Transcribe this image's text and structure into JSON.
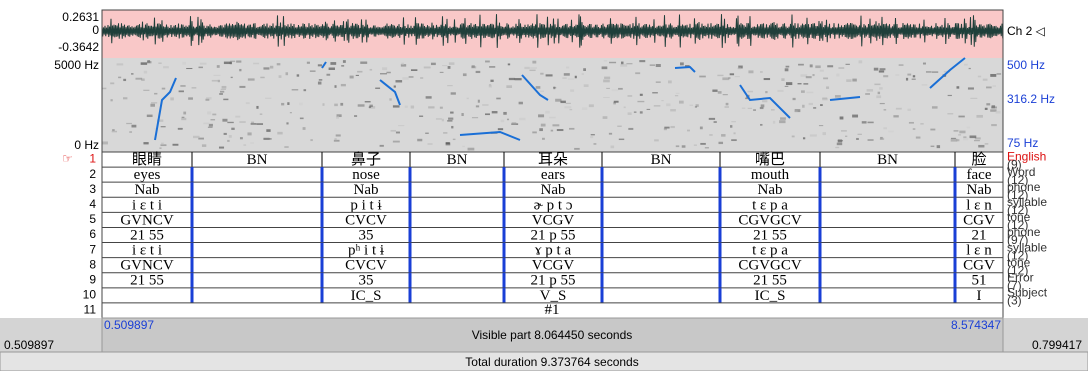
{
  "waveform": {
    "max": "0.2631",
    "zero": "0",
    "min": "-0.3642",
    "channel": "Ch 2 ◁"
  },
  "spectrogram": {
    "top": "5000 Hz",
    "bottom": "0 Hz",
    "pitch_top": "500 Hz",
    "pitch_mid": "316.2 Hz",
    "pitch_bottom": "75 Hz"
  },
  "tiers": [
    {
      "number": "1",
      "name": "English",
      "count": "(9)",
      "labels": [
        "眼睛",
        "BN",
        "鼻子",
        "BN",
        "耳朵",
        "BN",
        "嘴巴",
        "BN",
        "脸"
      ]
    },
    {
      "number": "2",
      "name": "Word",
      "count": "(12)",
      "labels": [
        "eyes",
        null,
        "nose",
        null,
        "ears",
        null,
        "mouth",
        null,
        "face"
      ]
    },
    {
      "number": "3",
      "name": "phone",
      "count": "(12)",
      "labels": [
        "Nab",
        null,
        "Nab",
        null,
        "Nab",
        null,
        "Nab",
        null,
        "Nab"
      ]
    },
    {
      "number": "4",
      "name": "syllable",
      "count": "(12)",
      "labels": [
        "i ɛ t i",
        null,
        "p i t ɨ",
        null,
        "ɚ p t ɔ",
        null,
        "t ɛ p a",
        null,
        "l ɛ n"
      ]
    },
    {
      "number": "5",
      "name": "tone",
      "count": "(12)",
      "labels": [
        "GVNCV",
        null,
        "CVCV",
        null,
        "VCGV",
        null,
        "CGVGCV",
        null,
        "CGV"
      ]
    },
    {
      "number": "6",
      "name": "phone",
      "count": "(97)",
      "labels": [
        "21 55",
        null,
        "35",
        null,
        "21 p 55",
        null,
        "21 55",
        null,
        "21"
      ]
    },
    {
      "number": "7",
      "name": "syllable",
      "count": "(12)",
      "labels": [
        "i ɛ t i",
        null,
        "pʰ i t ɨ",
        null,
        "ɤ p t a",
        null,
        "t ɛ p a",
        null,
        "l ɛ n"
      ]
    },
    {
      "number": "8",
      "name": "tone",
      "count": "(12)",
      "labels": [
        "GVNCV",
        null,
        "CVCV",
        null,
        "VCGV",
        null,
        "CGVGCV",
        null,
        "CGV"
      ]
    },
    {
      "number": "9",
      "name": "Error",
      "count": "(7)",
      "labels": [
        "21 55",
        null,
        "35",
        null,
        "21 p 55",
        null,
        "21 55",
        null,
        "51"
      ]
    },
    {
      "number": "10",
      "name": "Subject",
      "count": "(3)",
      "labels": [
        null,
        null,
        "IC_S",
        null,
        "V_S",
        null,
        "IC_S",
        null,
        "I"
      ]
    },
    {
      "number": "11",
      "name": null,
      "count": null,
      "labels": [
        "#1"
      ]
    }
  ],
  "footer": {
    "left_time": "0.509897",
    "visible_start": "0.509897",
    "visible": "Visible part 8.064450 seconds",
    "visible_end": "8.574347",
    "right_time": "0.799417",
    "total": "Total duration 9.373764 seconds"
  }
}
